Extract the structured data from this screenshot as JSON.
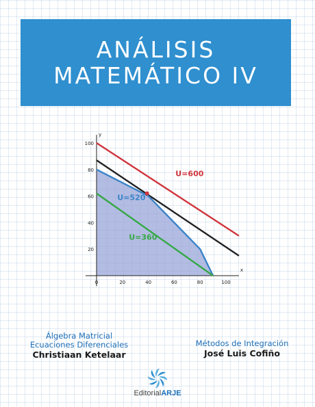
{
  "cover": {
    "title_line1": "ANÁLISIS",
    "title_line2": "MATEMÁTICO IV",
    "left_subject1": "Álgebra Matricial",
    "left_subject2": "Ecuaciones Diferenciales",
    "left_author": "Christiaan Ketelaar",
    "right_subject": "Métodos de Integración",
    "right_author": "José Luis Cofiño",
    "publisher_prefix": "Editorial",
    "publisher_name": "ARJE",
    "logo": "publisher-pinwheel-logo"
  },
  "colors": {
    "title_band": "#2f8fcf",
    "accent_blue": "#1e6fb8",
    "line_red": "#d0343c",
    "line_black": "#222222",
    "line_blue": "#3a84c8",
    "line_green": "#35a845",
    "region_fill": "#9aa6d8"
  },
  "chart_data": {
    "type": "line",
    "xlabel": "x",
    "ylabel": "y",
    "xlim": [
      0,
      110
    ],
    "ylim": [
      -8,
      103
    ],
    "x_ticks": [
      "0",
      "20",
      "40",
      "60",
      "80",
      "100"
    ],
    "y_ticks": [
      "20",
      "40",
      "60",
      "80",
      "100"
    ],
    "x_tick_values": [
      0,
      20,
      40,
      60,
      80,
      100
    ],
    "y_tick_values": [
      20,
      40,
      60,
      80,
      100
    ],
    "feasible_region": [
      [
        0,
        0
      ],
      [
        0,
        80
      ],
      [
        40,
        60
      ],
      [
        80,
        20
      ],
      [
        90,
        0
      ]
    ],
    "optimum_point": [
      39,
      62
    ],
    "series": [
      {
        "name": "U=600",
        "color": "#d0343c",
        "points": [
          [
            0,
            100
          ],
          [
            110,
            30
          ]
        ]
      },
      {
        "name": "",
        "color": "#222222",
        "points": [
          [
            0,
            87
          ],
          [
            110,
            15
          ]
        ]
      },
      {
        "name": "U=520",
        "color": "#3a84c8",
        "points": [
          [
            0,
            80
          ],
          [
            40,
            60
          ],
          [
            80,
            20
          ],
          [
            90,
            0
          ]
        ]
      },
      {
        "name": "U=360",
        "color": "#35a845",
        "points": [
          [
            0,
            62
          ],
          [
            90,
            0
          ]
        ]
      }
    ],
    "labels": [
      {
        "text": "U=600",
        "at": [
          61,
          75
        ],
        "color": "#d0343c"
      },
      {
        "text": "U=520",
        "at": [
          16,
          57
        ],
        "color": "#3a84c8"
      },
      {
        "text": "U=360",
        "at": [
          25,
          27
        ],
        "color": "#35a845"
      }
    ]
  }
}
